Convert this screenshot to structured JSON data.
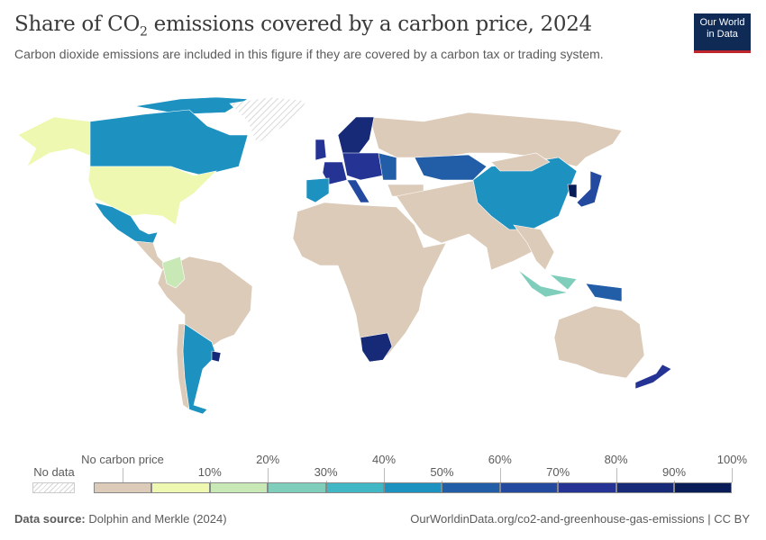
{
  "header": {
    "title_pre": "Share of CO",
    "title_sub": "2",
    "title_post": " emissions covered by a carbon price, 2024",
    "subtitle": "Carbon dioxide emissions are included in this figure if they are covered by a carbon tax or trading system.",
    "logo_line1": "Our World",
    "logo_line2": "in Data"
  },
  "legend": {
    "no_data_label": "No data",
    "no_price_label": "No carbon price",
    "bins": [
      {
        "label": "No carbon price",
        "color": "#dccbb8"
      },
      {
        "label": "10%",
        "color": "#eef8b0"
      },
      {
        "label": "20%",
        "color": "#c8e8b5"
      },
      {
        "label": "30%",
        "color": "#7fcdbb"
      },
      {
        "label": "40%",
        "color": "#41b6c4"
      },
      {
        "label": "50%",
        "color": "#1d91c0"
      },
      {
        "label": "60%",
        "color": "#225ea8"
      },
      {
        "label": "70%",
        "color": "#234a9e"
      },
      {
        "label": "80%",
        "color": "#253494"
      },
      {
        "label": "90%",
        "color": "#162a78"
      },
      {
        "label": "100%",
        "color": "#081d58"
      }
    ],
    "tick_labels_top": [
      "20%",
      "40%",
      "60%",
      "80%",
      "100%"
    ],
    "tick_labels_bottom": [
      "10%",
      "30%",
      "50%",
      "70%",
      "90%"
    ]
  },
  "map_data": {
    "metric": "share of CO2 emissions covered by a carbon price (%)",
    "regions": {
      "alaska": 5,
      "canada": 45,
      "canada_arctic": 45,
      "greenland": null,
      "usa": 5,
      "mexico": 45,
      "central_america": 0,
      "colombia": 15,
      "south_america": 0,
      "chile": 0,
      "argentina": 45,
      "uruguay": 85,
      "africa": 0,
      "south_africa": 88,
      "iberia": 45,
      "france": 75,
      "uk": 75,
      "central_europe": 72,
      "italy": 65,
      "scandinavia": 85,
      "eastern_europe": 55,
      "turkey": 0,
      "russia": 0,
      "kazakhstan": 55,
      "middle_east_south_asia": 0,
      "china": 45,
      "mongolia": 0,
      "southeast_asia": 0,
      "korea": 95,
      "japan": 70,
      "indonesia_w": 30,
      "indonesia_e": 30,
      "papua": 55,
      "australia": 0,
      "new_zealand": 75
    }
  },
  "footer": {
    "source_label": "Data source:",
    "source_value": " Dolphin and Merkle (2024)",
    "url": "OurWorldinData.org/co2-and-greenhouse-gas-emissions | CC BY"
  }
}
